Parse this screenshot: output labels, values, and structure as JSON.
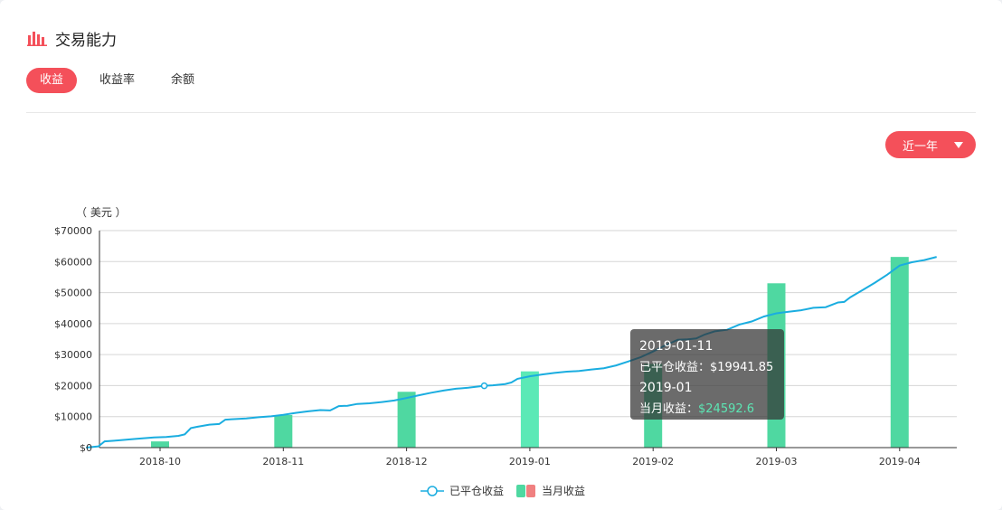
{
  "header": {
    "title": "交易能力",
    "icon": "bar-chart-icon"
  },
  "tabs": [
    {
      "label": "收益",
      "active": true
    },
    {
      "label": "收益率",
      "active": false
    },
    {
      "label": "余额",
      "active": false
    }
  ],
  "range_select": {
    "value": "近一年",
    "icon": "caret-down-icon"
  },
  "colors": {
    "accent": "#f4505a",
    "line": "#1aade0",
    "bar": "#4fd8a1",
    "bar_highlight": "#5be9b6",
    "legend_bar_alt": "#f08080"
  },
  "chart_data": {
    "type": "bar",
    "unit_label": "（ 美元 ）",
    "ylim": [
      0,
      70000
    ],
    "y_ticks": [
      "$70000",
      "$60000",
      "$50000",
      "$40000",
      "$30000",
      "$20000",
      "$10000",
      "$0"
    ],
    "categories": [
      "2018-10",
      "2018-11",
      "2018-12",
      "2019-01",
      "2019-02",
      "2019-03",
      "2019-04"
    ],
    "series": [
      {
        "name": "当月收益",
        "type": "bar",
        "values": [
          2000,
          10500,
          18000,
          24592.6,
          27000,
          53000,
          61500
        ]
      },
      {
        "name": "已平仓收益",
        "type": "line",
        "points": [
          [
            -0.6,
            0
          ],
          [
            -0.5,
            400
          ],
          [
            -0.45,
            2000
          ],
          [
            -0.35,
            2300
          ],
          [
            -0.2,
            2800
          ],
          [
            -0.05,
            3300
          ],
          [
            0.05,
            3400
          ],
          [
            0.15,
            3800
          ],
          [
            0.2,
            4300
          ],
          [
            0.25,
            6300
          ],
          [
            0.3,
            6700
          ],
          [
            0.4,
            7400
          ],
          [
            0.48,
            7600
          ],
          [
            0.53,
            9000
          ],
          [
            0.6,
            9200
          ],
          [
            0.7,
            9400
          ],
          [
            0.8,
            9800
          ],
          [
            0.9,
            10100
          ],
          [
            1.0,
            10600
          ],
          [
            1.1,
            11200
          ],
          [
            1.2,
            11700
          ],
          [
            1.3,
            12100
          ],
          [
            1.38,
            12000
          ],
          [
            1.45,
            13400
          ],
          [
            1.52,
            13500
          ],
          [
            1.6,
            14100
          ],
          [
            1.7,
            14300
          ],
          [
            1.8,
            14700
          ],
          [
            1.9,
            15200
          ],
          [
            2.0,
            16000
          ],
          [
            2.1,
            16900
          ],
          [
            2.2,
            17700
          ],
          [
            2.3,
            18400
          ],
          [
            2.4,
            19000
          ],
          [
            2.5,
            19300
          ],
          [
            2.63,
            19941.85
          ],
          [
            2.7,
            20100
          ],
          [
            2.8,
            20500
          ],
          [
            2.85,
            21000
          ],
          [
            2.9,
            22200
          ],
          [
            3.0,
            23000
          ],
          [
            3.1,
            23600
          ],
          [
            3.2,
            24100
          ],
          [
            3.3,
            24500
          ],
          [
            3.4,
            24700
          ],
          [
            3.5,
            25200
          ],
          [
            3.6,
            25600
          ],
          [
            3.7,
            26500
          ],
          [
            3.8,
            27800
          ],
          [
            3.9,
            29200
          ],
          [
            4.0,
            31000
          ],
          [
            4.1,
            33000
          ],
          [
            4.2,
            34800
          ],
          [
            4.28,
            34900
          ],
          [
            4.35,
            35200
          ],
          [
            4.42,
            36500
          ],
          [
            4.5,
            37500
          ],
          [
            4.6,
            38000
          ],
          [
            4.7,
            39700
          ],
          [
            4.8,
            40700
          ],
          [
            4.9,
            42300
          ],
          [
            5.0,
            43300
          ],
          [
            5.1,
            43800
          ],
          [
            5.2,
            44300
          ],
          [
            5.3,
            45100
          ],
          [
            5.4,
            45300
          ],
          [
            5.5,
            46800
          ],
          [
            5.55,
            47000
          ],
          [
            5.6,
            48500
          ],
          [
            5.7,
            50800
          ],
          [
            5.8,
            53200
          ],
          [
            5.9,
            55800
          ],
          [
            6.0,
            58700
          ],
          [
            6.1,
            59800
          ],
          [
            6.2,
            60500
          ],
          [
            6.3,
            61500
          ]
        ]
      }
    ],
    "highlight_point": {
      "date": "2019-01-11",
      "value": 19941.85
    },
    "tooltip": {
      "date1": "2019-01-11",
      "label1": "已平仓收益：",
      "value1": "$19941.85",
      "date2": "2019-01",
      "label2": "当月收益：",
      "value2": "$24592.6"
    },
    "legend": {
      "position": "bottom-center"
    },
    "grid": true
  }
}
